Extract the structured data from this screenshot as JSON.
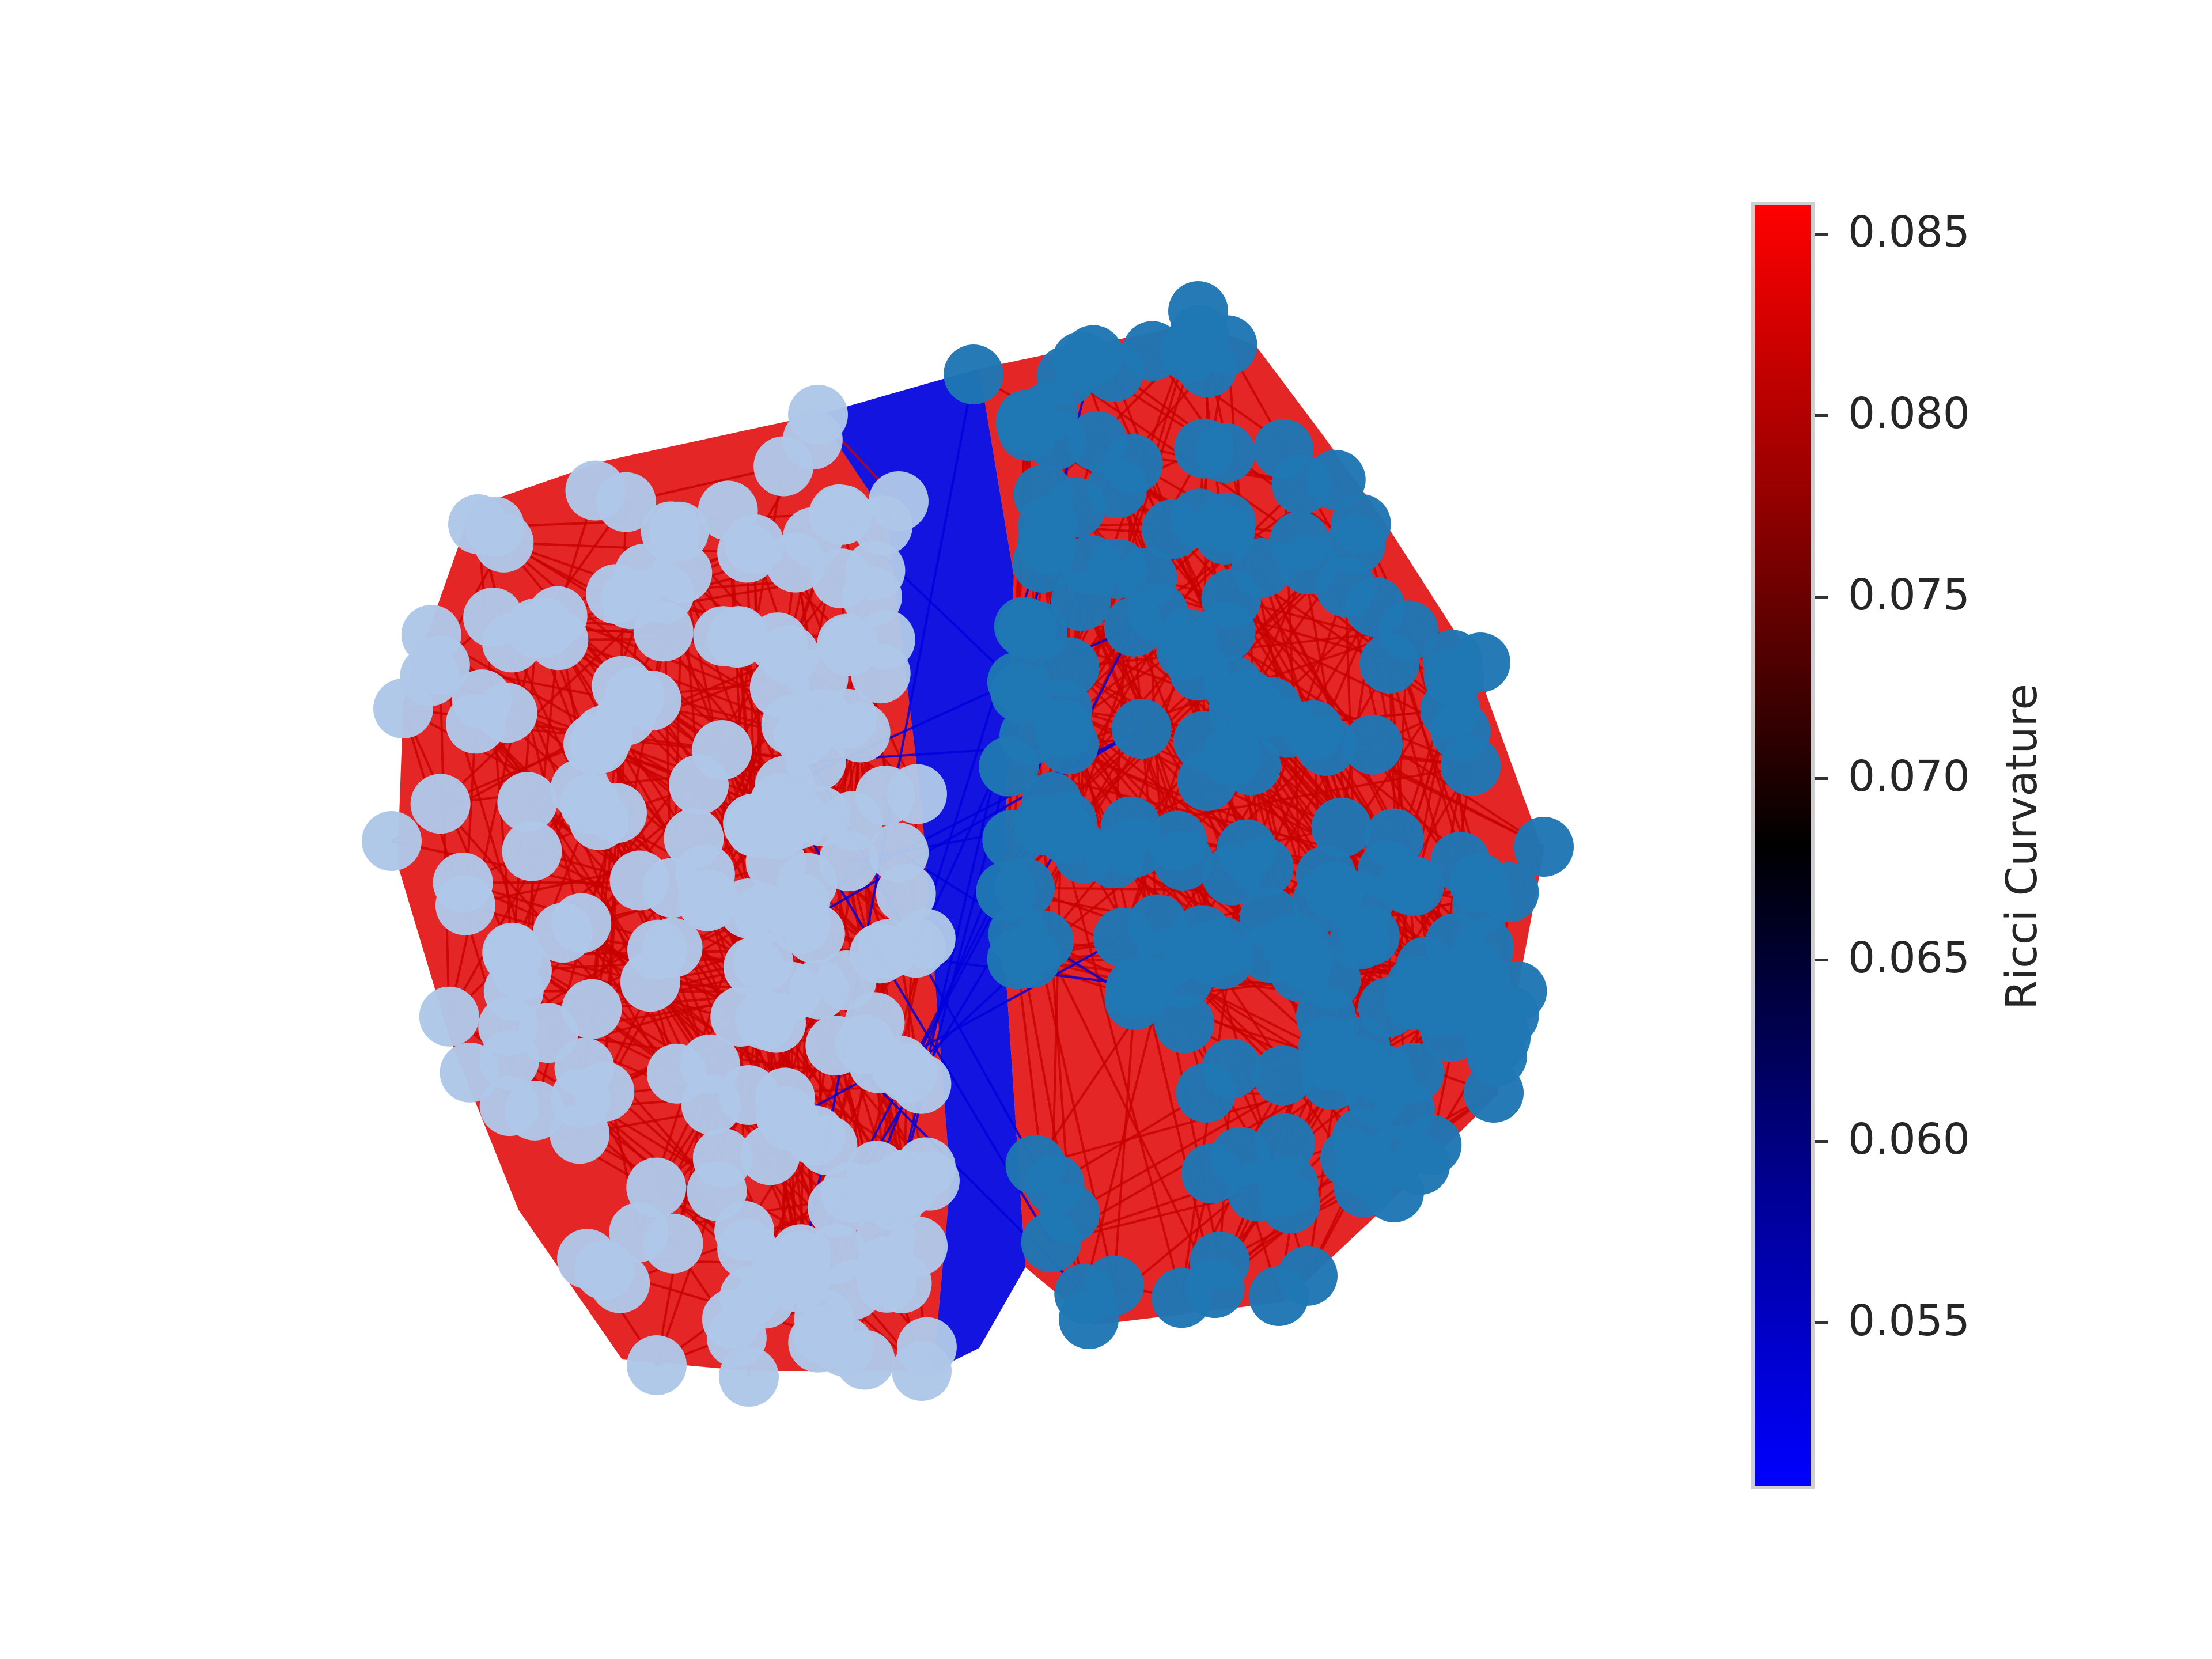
{
  "colorbar": {
    "label": "Ricci Curvature",
    "min": 0.0505,
    "max": 0.0858,
    "ticks": [
      "0.085",
      "0.080",
      "0.075",
      "0.070",
      "0.065",
      "0.060",
      "0.055"
    ],
    "colors": [
      "#0000ff",
      "#000000",
      "#ff0000"
    ]
  },
  "graph": {
    "communities": [
      {
        "color": "#aec7e8"
      },
      {
        "color": "#1f77b4"
      }
    ],
    "intra_edge_color": "#e00000",
    "inter_edge_color": "#0000dd"
  }
}
